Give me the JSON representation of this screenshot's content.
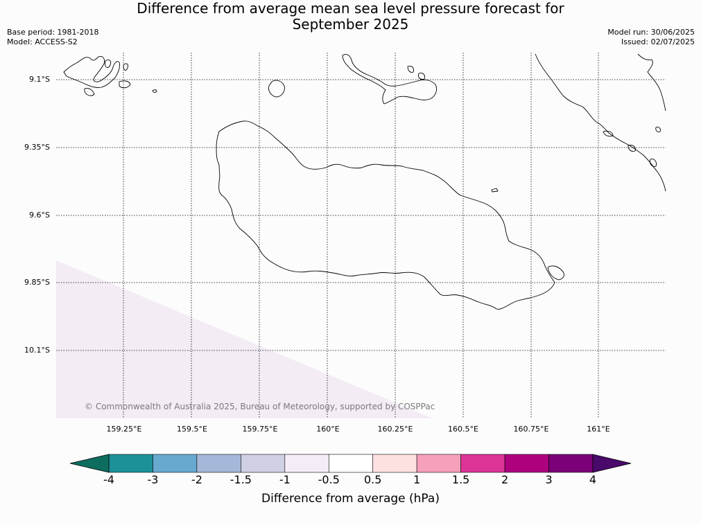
{
  "header": {
    "title_line1": "Difference from average mean sea level pressure forecast for",
    "title_line2": "September 2025",
    "base_period": "Base period: 1981-2018",
    "model": "Model: ACCESS-S2",
    "model_run": "Model run: 30/06/2025",
    "issued": "Issued: 02/07/2025"
  },
  "map": {
    "lat_labels": [
      "9.1°S",
      "9.35°S",
      "9.6°S",
      "9.85°S",
      "10.1°S"
    ],
    "lon_labels": [
      "159.25°E",
      "159.5°E",
      "159.75°E",
      "160°E",
      "160.25°E",
      "160.5°E",
      "160.75°E",
      "161°E"
    ],
    "copyright": "© Commonwealth of Australia 2025, Bureau of Meteorology, supported by COSPPac",
    "shaded_anomaly_range": "-1 to -0.5",
    "shaded_color": "#f3ecf5",
    "land_outline_color": "#000000",
    "gridline_style": "dotted"
  },
  "colorbar": {
    "label": "Difference from average (hPa)",
    "ticks": [
      "-4",
      "-3",
      "-2",
      "-1.5",
      "-1",
      "-0.5",
      "0.5",
      "1",
      "1.5",
      "2",
      "3",
      "4"
    ],
    "under_color": "#0d6e60",
    "over_color": "#4a0a6b",
    "colors": [
      "#1c9198",
      "#68a9d0",
      "#a6b8d9",
      "#cfd0e4",
      "#f4ecf6",
      "#ffffff",
      "#fde0e0",
      "#f6a0bc",
      "#dd3497",
      "#ae017e",
      "#7a0177"
    ]
  }
}
